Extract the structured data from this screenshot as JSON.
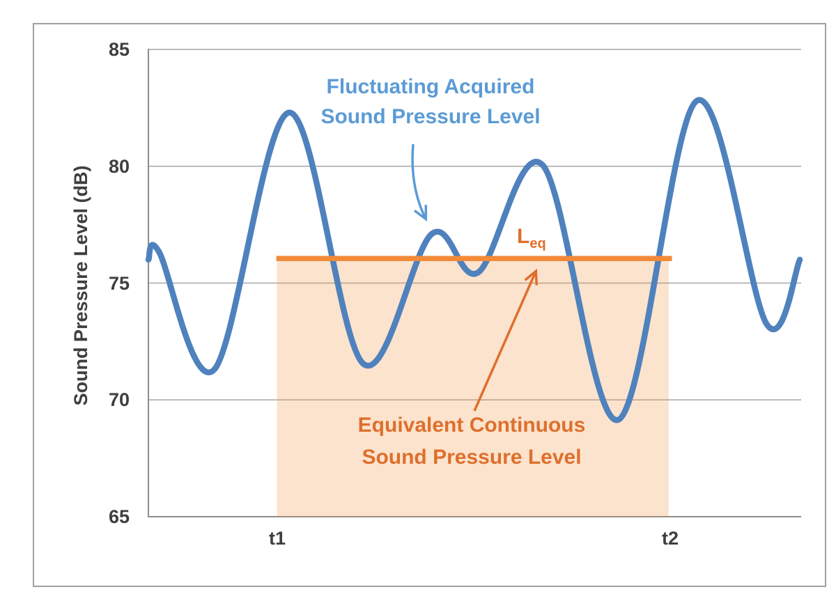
{
  "chart_data": {
    "type": "line",
    "title": "",
    "xlabel": "",
    "ylabel": "Sound Pressure Level (dB)",
    "ylim": [
      65,
      85
    ],
    "yticks": [
      85,
      80,
      75,
      70,
      65
    ],
    "xticks": [
      {
        "label": "t1",
        "x": 0.197
      },
      {
        "label": "t2",
        "x": 0.799
      }
    ],
    "grid": true,
    "legend": "none (labels drawn as annotations)",
    "series": [
      {
        "name": "Fluctuating Acquired Sound Pressure Level",
        "color": "#4f81bd",
        "x": [
          0.0,
          0.016,
          0.101,
          0.216,
          0.329,
          0.434,
          0.505,
          0.604,
          0.72,
          0.84,
          0.947,
          0.998
        ],
        "y": [
          76.0,
          76.35,
          71.3,
          82.3,
          71.55,
          77.1,
          75.45,
          80.05,
          69.15,
          82.8,
          73.25,
          76.0
        ]
      },
      {
        "name": "Equivalent Continuous Sound Pressure Level (Leq)",
        "color": "#f28a38",
        "type": "hline",
        "value": 76.05,
        "x_start": 0.196,
        "x_end": 0.802
      }
    ],
    "shaded_region": {
      "x_start": 0.197,
      "x_end": 0.797,
      "y_bottom": 65,
      "y_top": 76.05,
      "color": "rgba(244,153,77,0.28)"
    }
  },
  "axis": {
    "ylabel": "Sound Pressure Level (dB)",
    "ytick_labels": [
      "85",
      "80",
      "75",
      "70",
      "65"
    ],
    "xtick_labels": [
      "t1",
      "t2"
    ]
  },
  "annotations": {
    "fluctuating_line1": "Fluctuating Acquired",
    "fluctuating_line2": "Sound Pressure Level",
    "leq_main": "L",
    "leq_sub": "eq",
    "equivalent_line1": "Equivalent Continuous",
    "equivalent_line2": "Sound Pressure Level"
  },
  "colors": {
    "curve_blue": "#4f81bd",
    "annotation_blue": "#5b9bd5",
    "leq_line_orange": "#f28a38",
    "annotation_orange": "#de6f2c",
    "shade_fill": "rgba(244,153,77,0.28)",
    "gridline": "#a6a6a6",
    "axis_line": "#8c8c8c",
    "tick_text": "#3f3f3f",
    "outer_border": "#a0a0a0"
  }
}
